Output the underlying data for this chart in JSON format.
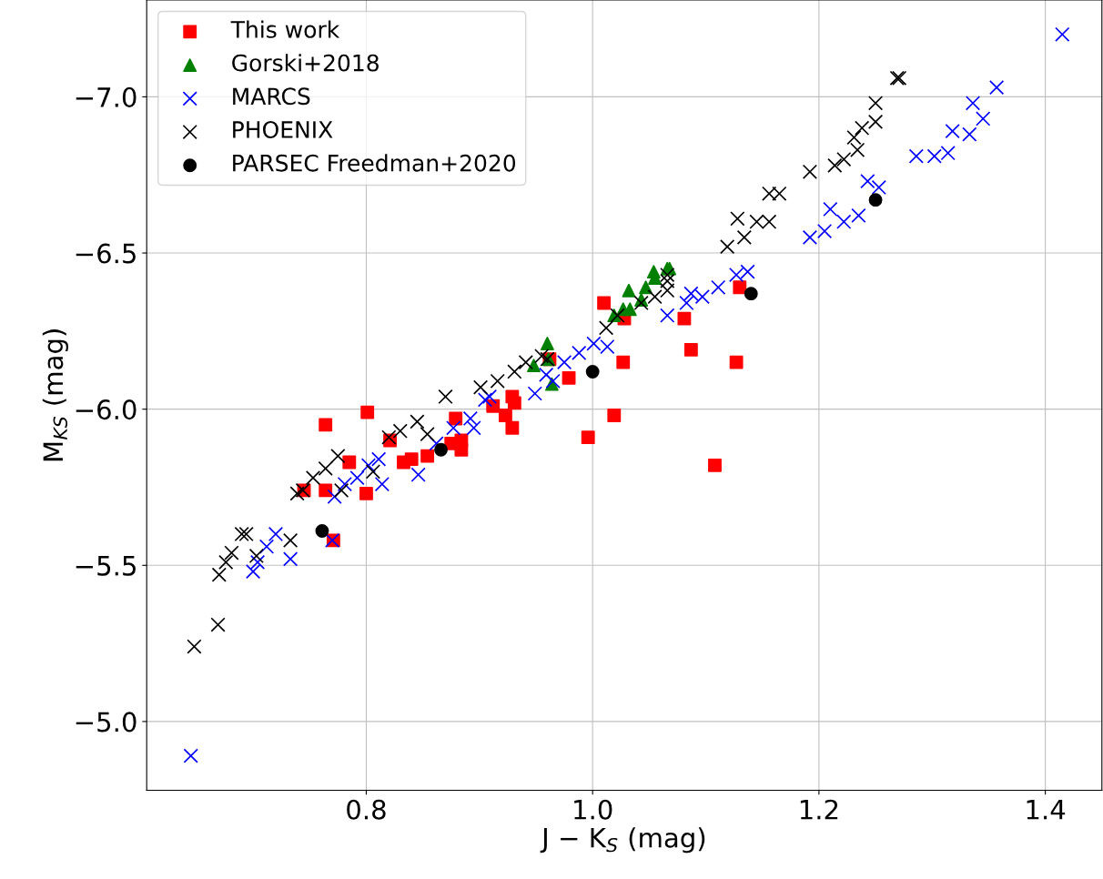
{
  "chart_data": {
    "type": "scatter",
    "xlabel": "J − K$_{S}$ (mag)",
    "ylabel": "M$_{KS}$ (mag)",
    "xlim": [
      0.606,
      1.45
    ],
    "ylim": [
      -4.78,
      -7.31
    ],
    "xticks": [
      0.8,
      {
        "value": 1.0,
        "label": "1.0"
      },
      1.2,
      1.4
    ],
    "yticks": [
      {
        "value": -7.0,
        "label": "−7.0"
      },
      {
        "value": -6.5,
        "label": "−6.5"
      },
      {
        "value": -6.0,
        "label": "−6.0"
      },
      {
        "value": -5.5,
        "label": "−5.5"
      },
      {
        "value": -5.0,
        "label": "−5.0"
      }
    ],
    "grid": true,
    "legend": "top left",
    "series": [
      {
        "name": "This work",
        "color": "#ff0000",
        "marker": "square",
        "x": [
          0.745,
          0.764,
          0.764,
          0.771,
          0.785,
          0.801,
          0.8,
          0.821,
          0.833,
          0.84,
          0.854,
          0.875,
          0.879,
          0.884,
          0.884,
          0.912,
          0.923,
          0.929,
          0.931,
          0.929,
          0.962,
          0.979,
          0.996,
          1.01,
          1.019,
          1.028,
          1.027,
          1.081,
          1.087,
          1.108,
          1.127,
          1.13
        ],
        "values": [
          -5.74,
          -5.95,
          -5.74,
          -5.58,
          -5.83,
          -5.99,
          -5.73,
          -5.9,
          -5.83,
          -5.84,
          -5.85,
          -5.89,
          -5.97,
          -5.9,
          -5.87,
          -6.01,
          -5.98,
          -6.04,
          -6.02,
          -5.94,
          -6.16,
          -6.1,
          -5.91,
          -6.34,
          -5.98,
          -6.29,
          -6.15,
          -6.29,
          -6.19,
          -5.82,
          -6.15,
          -6.39
        ]
      },
      {
        "name": "Gorski+2018",
        "color": "#008000",
        "marker": "triangle",
        "x": [
          0.96,
          0.948,
          0.961,
          0.964,
          1.019,
          1.027,
          1.033,
          1.032,
          1.043,
          1.047,
          1.054,
          1.055,
          1.066,
          1.068
        ],
        "values": [
          -6.21,
          -6.14,
          -6.16,
          -6.08,
          -6.3,
          -6.32,
          -6.32,
          -6.38,
          -6.35,
          -6.39,
          -6.44,
          -6.42,
          -6.45,
          -6.45
        ]
      },
      {
        "name": "MARCS",
        "color": "#0000ff",
        "marker": "cross",
        "x": [
          0.645,
          0.7,
          0.704,
          0.712,
          0.72,
          0.733,
          0.77,
          0.772,
          0.781,
          0.792,
          0.802,
          0.811,
          0.814,
          0.846,
          0.862,
          0.877,
          0.892,
          0.895,
          0.905,
          0.909,
          0.949,
          0.959,
          0.965,
          0.975,
          0.988,
          1.001,
          1.013,
          1.066,
          1.083,
          1.087,
          1.097,
          1.111,
          1.127,
          1.137,
          1.192,
          1.205,
          1.21,
          1.222,
          1.235,
          1.243,
          1.253,
          1.286,
          1.302,
          1.314,
          1.318,
          1.333,
          1.336,
          1.345,
          1.357,
          1.415
        ],
        "values": [
          -4.89,
          -5.48,
          -5.51,
          -5.56,
          -5.6,
          -5.52,
          -5.58,
          -5.72,
          -5.76,
          -5.78,
          -5.82,
          -5.84,
          -5.76,
          -5.79,
          -5.89,
          -5.94,
          -5.97,
          -5.94,
          -6.03,
          -6.04,
          -6.05,
          -6.11,
          -6.09,
          -6.15,
          -6.18,
          -6.21,
          -6.2,
          -6.3,
          -6.34,
          -6.37,
          -6.36,
          -6.39,
          -6.43,
          -6.44,
          -6.55,
          -6.57,
          -6.64,
          -6.6,
          -6.62,
          -6.73,
          -6.71,
          -6.81,
          -6.81,
          -6.82,
          -6.89,
          -6.88,
          -6.98,
          -6.93,
          -7.03,
          -7.2
        ]
      },
      {
        "name": "PHOENIX",
        "color": "#000000",
        "marker": "cross",
        "x": [
          0.648,
          0.669,
          0.67,
          0.676,
          0.681,
          0.69,
          0.694,
          0.703,
          0.733,
          0.739,
          0.744,
          0.753,
          0.764,
          0.775,
          0.778,
          0.806,
          0.82,
          0.83,
          0.845,
          0.854,
          0.87,
          0.901,
          0.916,
          0.931,
          0.941,
          0.955,
          0.96,
          1.012,
          1.022,
          1.043,
          1.055,
          1.066,
          1.066,
          1.066,
          1.119,
          1.128,
          1.134,
          1.145,
          1.156,
          1.156,
          1.165,
          1.192,
          1.214,
          1.222,
          1.234,
          1.231,
          1.238,
          1.25,
          1.25,
          1.269,
          1.271
        ],
        "values": [
          -5.24,
          -5.31,
          -5.47,
          -5.51,
          -5.54,
          -5.6,
          -5.6,
          -5.53,
          -5.58,
          -5.73,
          -5.74,
          -5.78,
          -5.81,
          -5.85,
          -5.74,
          -5.8,
          -5.91,
          -5.93,
          -5.96,
          -5.92,
          -6.04,
          -6.07,
          -6.09,
          -6.12,
          -6.15,
          -6.17,
          -6.16,
          -6.26,
          -6.3,
          -6.34,
          -6.36,
          -6.38,
          -6.41,
          -6.43,
          -6.52,
          -6.61,
          -6.55,
          -6.6,
          -6.6,
          -6.69,
          -6.69,
          -6.76,
          -6.78,
          -6.8,
          -6.83,
          -6.87,
          -6.9,
          -6.92,
          -6.98,
          -7.06,
          -7.06
        ]
      },
      {
        "name": "PARSEC Freedman+2020",
        "color": "#000000",
        "marker": "circle",
        "x": [
          0.761,
          0.866,
          1.0,
          1.14,
          1.25
        ],
        "values": [
          -5.61,
          -5.87,
          -6.12,
          -6.37,
          -6.67
        ]
      }
    ]
  }
}
